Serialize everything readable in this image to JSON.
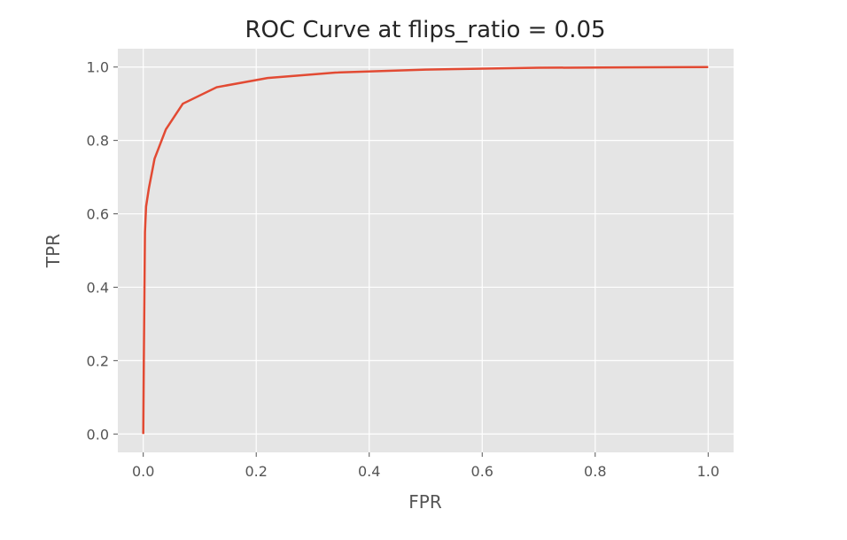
{
  "chart_data": {
    "type": "line",
    "title": "ROC Curve at flips_ratio = 0.05",
    "xlabel": "FPR",
    "ylabel": "TPR",
    "xlim": [
      -0.045,
      1.045
    ],
    "ylim": [
      -0.05,
      1.05
    ],
    "x_ticks": [
      0.0,
      0.2,
      0.4,
      0.6,
      0.8,
      1.0
    ],
    "x_tick_labels": [
      "0.0",
      "0.2",
      "0.4",
      "0.6",
      "0.8",
      "1.0"
    ],
    "y_ticks": [
      0.0,
      0.2,
      0.4,
      0.6,
      0.8,
      1.0
    ],
    "y_tick_labels": [
      "0.0",
      "0.2",
      "0.4",
      "0.6",
      "0.8",
      "1.0"
    ],
    "grid": true,
    "style": "ggplot",
    "colors": {
      "plot_background": "#e5e5e5",
      "grid": "#ffffff",
      "line": "#e24a33",
      "text": "#555555",
      "title": "#262626"
    },
    "series": [
      {
        "x": [
          0.0,
          0.001,
          0.002,
          0.003,
          0.005,
          0.01,
          0.02,
          0.04,
          0.07,
          0.13,
          0.22,
          0.34,
          0.5,
          0.7,
          0.85,
          1.0
        ],
        "y": [
          0.0,
          0.2,
          0.38,
          0.55,
          0.62,
          0.67,
          0.75,
          0.83,
          0.9,
          0.945,
          0.97,
          0.985,
          0.993,
          0.998,
          0.999,
          1.0
        ]
      }
    ]
  }
}
